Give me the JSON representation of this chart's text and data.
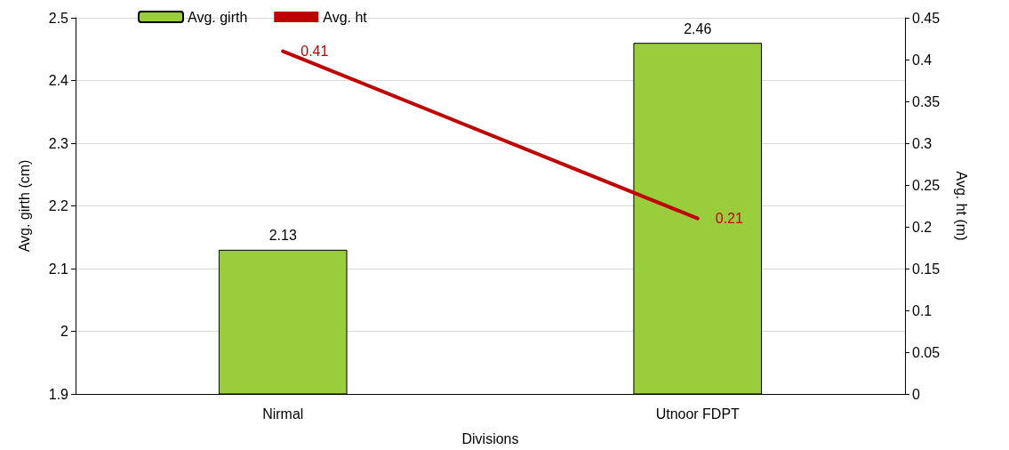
{
  "chart_data": {
    "type": "bar",
    "xlabel": "Divisions",
    "ylabel": "Avg. girth (cm)",
    "y2label": "Avg. ht (m)",
    "categories": [
      "Nirmal",
      "Utnoor FDPT"
    ],
    "series": [
      {
        "name": "Avg. girth",
        "color": "#9acd3c",
        "values": [
          2.13,
          2.46
        ]
      },
      {
        "name": "Avg. ht",
        "type": "line",
        "axis": "y2",
        "color": "#c00000",
        "values": [
          0.41,
          0.21
        ],
        "marker": "none"
      }
    ],
    "ylim": [
      1.9,
      2.5
    ],
    "yticks": [
      1.9,
      2,
      2.1,
      2.2,
      2.3,
      2.4,
      2.5
    ],
    "y2lim": [
      0,
      0.45
    ],
    "y2ticks": [
      0,
      0.05,
      0.1,
      0.15,
      0.2,
      0.25,
      0.3,
      0.35,
      0.4,
      0.45
    ],
    "grid": "y",
    "legend": "top left",
    "data_labels": true
  }
}
